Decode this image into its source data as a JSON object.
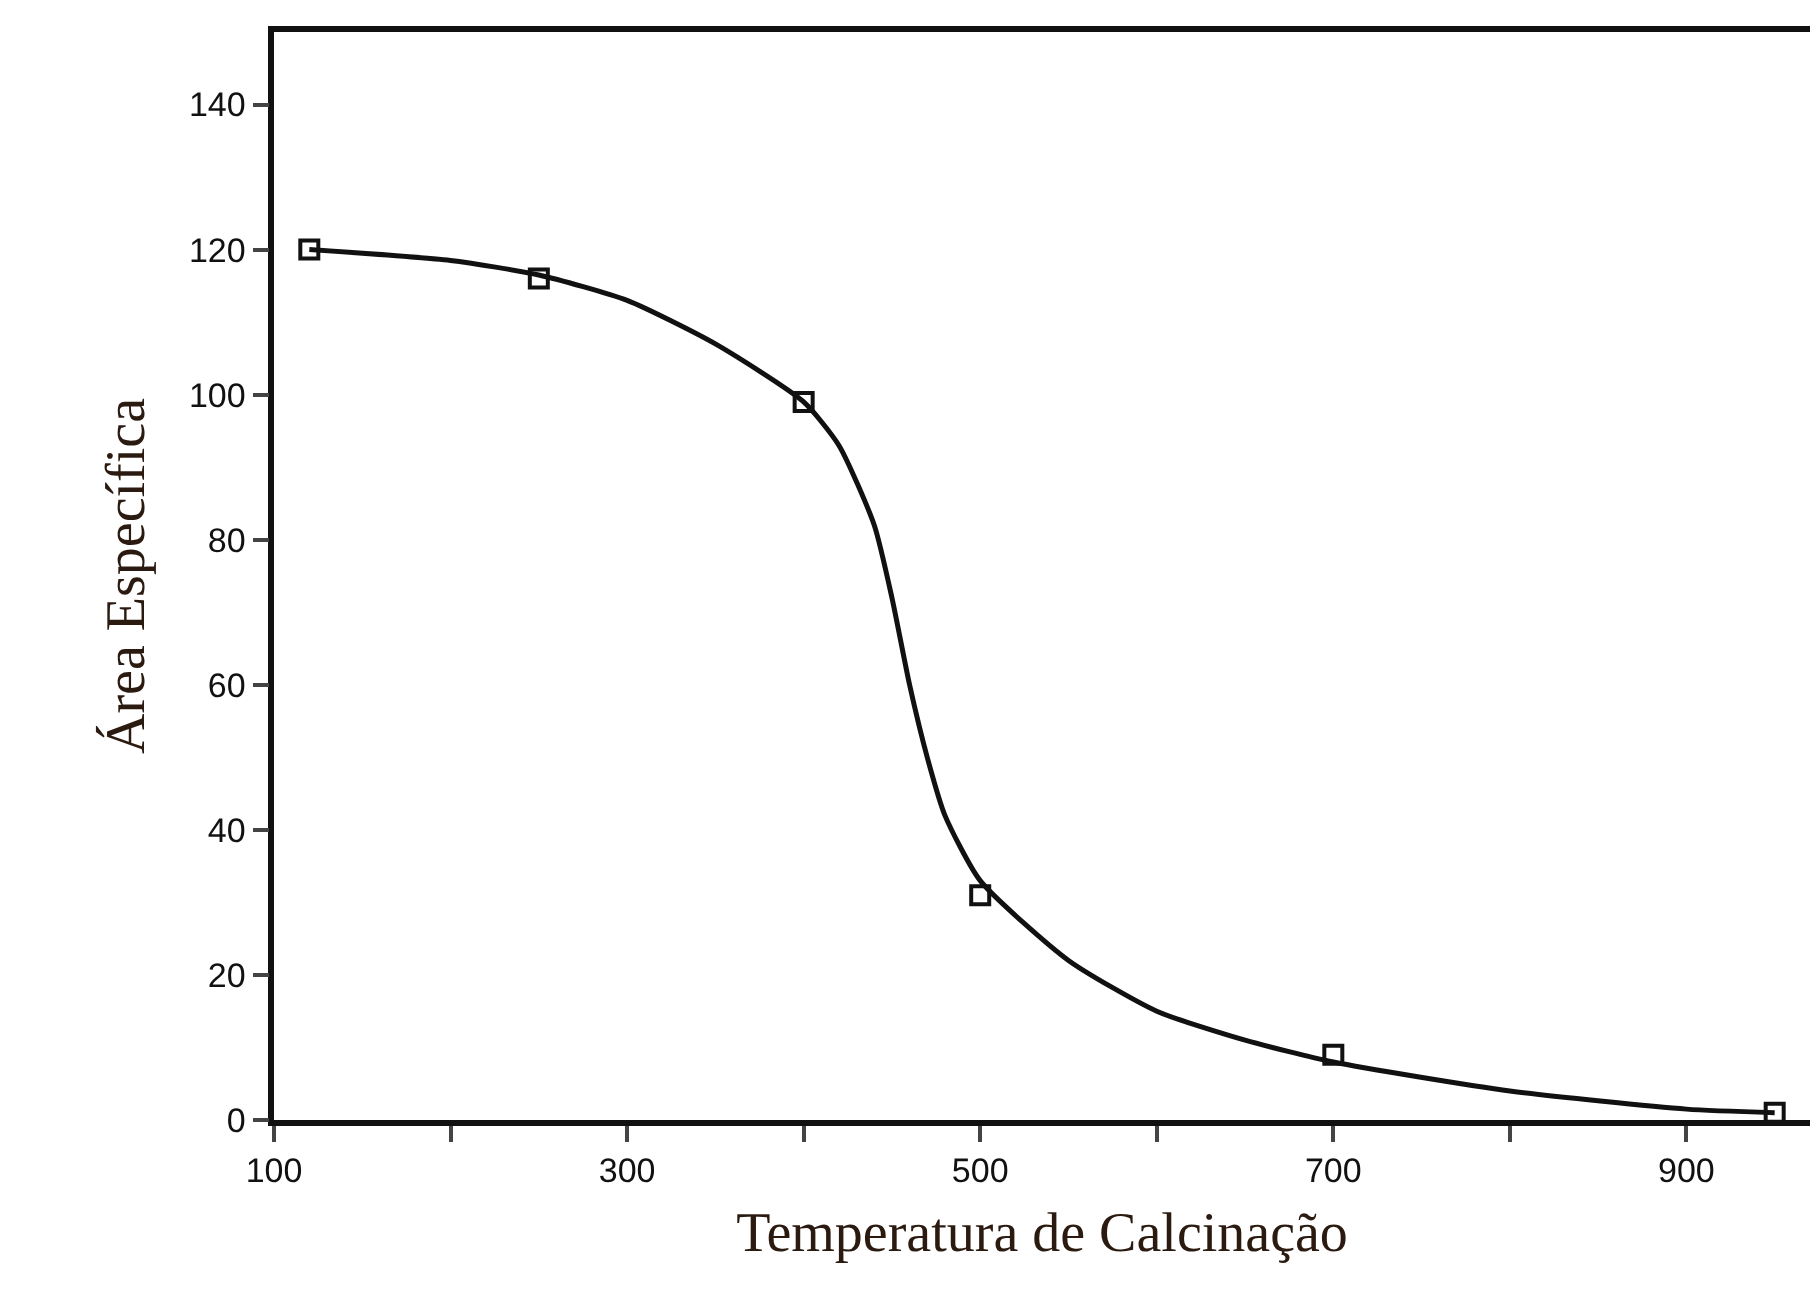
{
  "chart_data": {
    "type": "scatter",
    "xlabel": "Temperatura de Calcinação",
    "ylabel": "Área Específica",
    "xlim": [
      100,
      970
    ],
    "ylim": [
      0,
      150
    ],
    "xticks": [
      100,
      {
        "value": 200,
        "label": null
      },
      300,
      {
        "value": 400,
        "label": null
      },
      500,
      {
        "value": 600,
        "label": null
      },
      700,
      {
        "value": 800,
        "label": null
      },
      900
    ],
    "yticks": [
      0,
      20,
      40,
      60,
      80,
      100,
      120,
      140
    ],
    "grid": false,
    "series": [
      {
        "marker": "square",
        "color": "#111111",
        "x": [
          120,
          250,
          400,
          500,
          700,
          950
        ],
        "values": [
          120,
          116,
          99,
          31,
          9,
          1
        ]
      },
      {
        "type": "line",
        "marker": "none",
        "line_style": "solid",
        "color": "#111111",
        "x": [
          120,
          200,
          250,
          300,
          350,
          400,
          420,
          440,
          450,
          460,
          470,
          480,
          500,
          550,
          600,
          650,
          700,
          800,
          900,
          950
        ],
        "values": [
          120,
          118.5,
          116.5,
          113,
          107,
          99,
          93,
          82,
          72,
          60,
          50,
          42,
          33,
          22,
          15,
          11,
          8,
          4,
          1.5,
          1
        ]
      }
    ]
  }
}
